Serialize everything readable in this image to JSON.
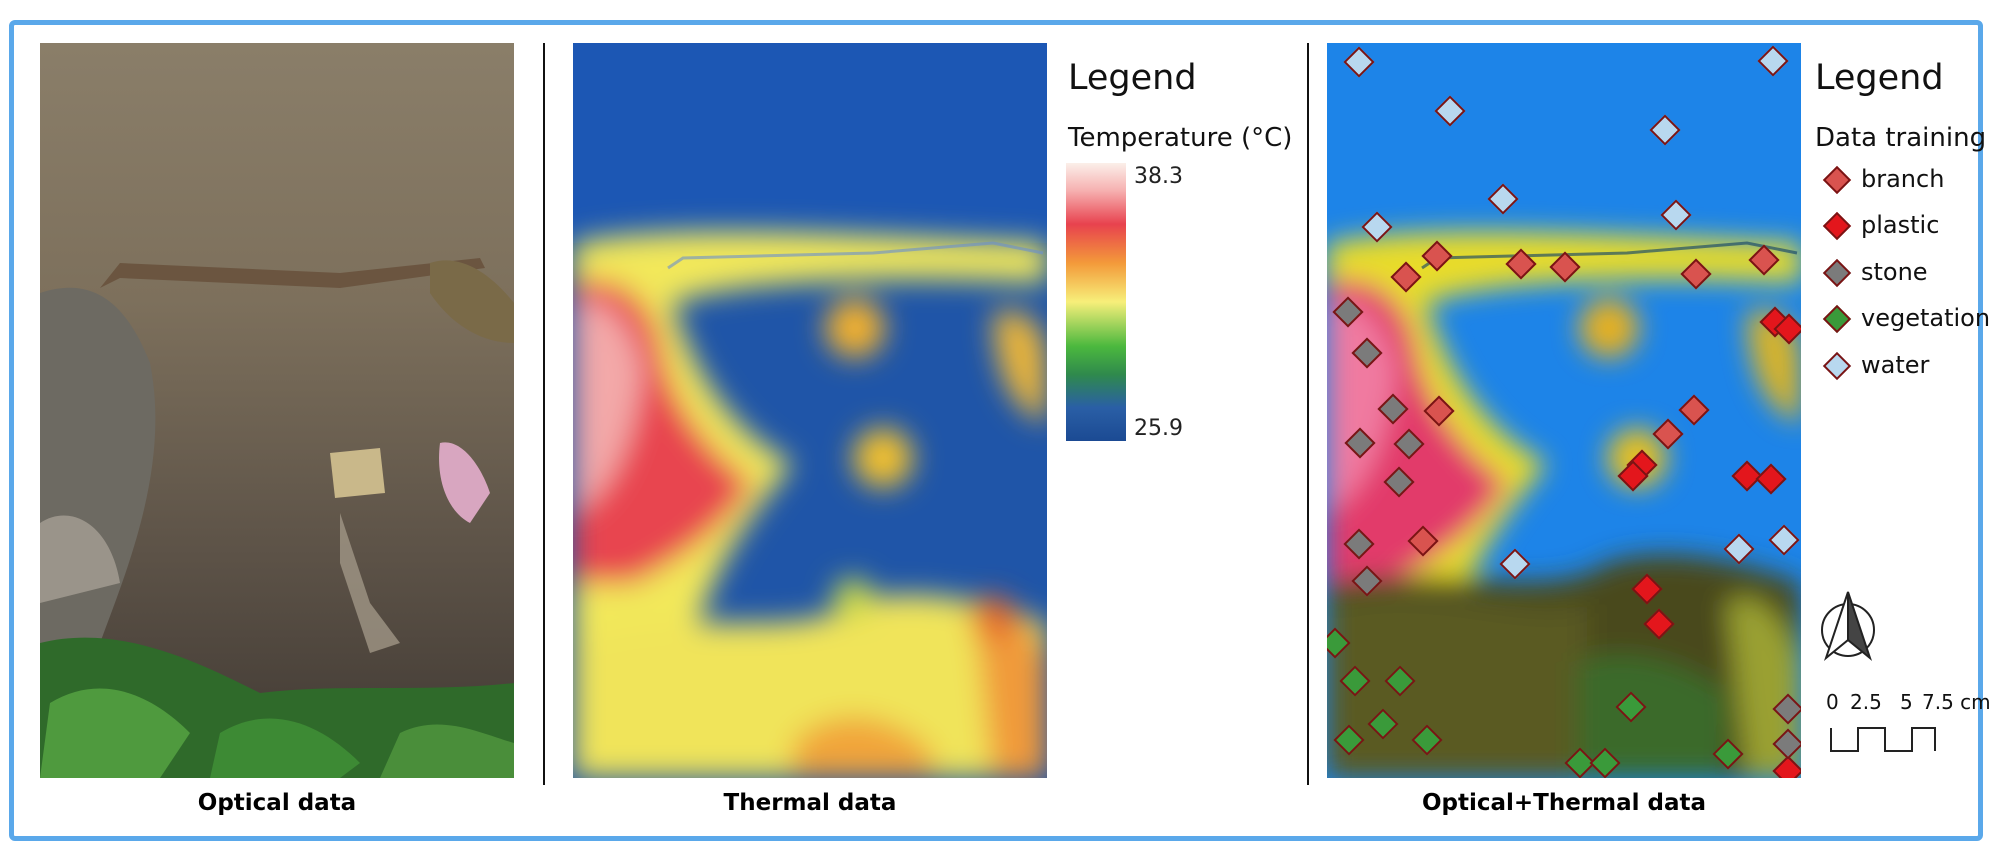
{
  "panels": {
    "optical_caption": "Optical data",
    "thermal_caption": "Thermal data",
    "combined_caption": "Optical+Thermal data"
  },
  "thermal_legend": {
    "title": "Legend",
    "subtitle": "Temperature (°C)",
    "max": "38.3",
    "min": "25.9"
  },
  "class_legend": {
    "title": "Legend",
    "subtitle": "Data training",
    "items": [
      {
        "label": "branch",
        "color": "#d9534f"
      },
      {
        "label": "plastic",
        "color": "#e3161c"
      },
      {
        "label": "stone",
        "color": "#7b7b7b"
      },
      {
        "label": "vegetation",
        "color": "#3a9a3a"
      },
      {
        "label": "water",
        "color": "#b8d8ef"
      }
    ]
  },
  "scale": {
    "ticks": [
      "0",
      "2.5",
      "5",
      "7.5 cm"
    ]
  },
  "north_arrow": "north-arrow-icon"
}
